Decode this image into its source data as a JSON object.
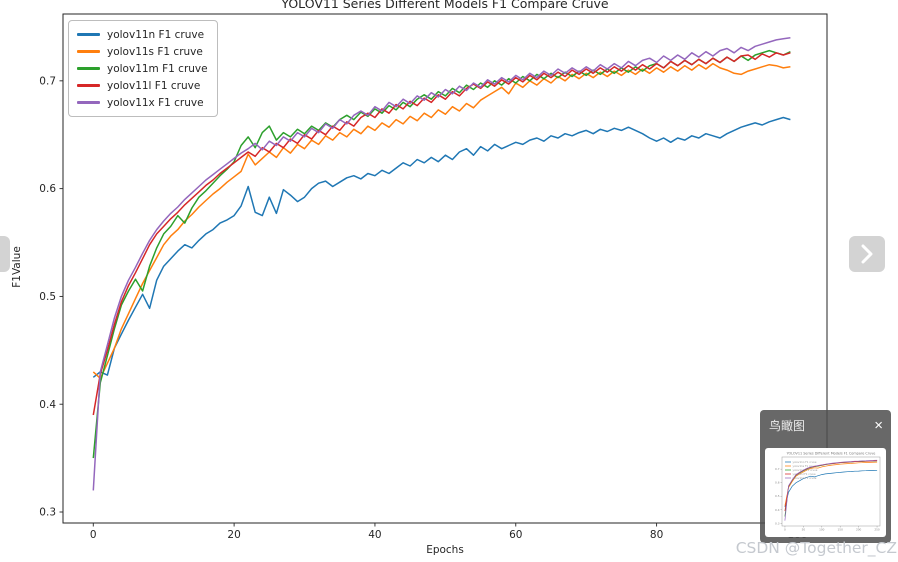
{
  "page": {
    "background": "#ffffff"
  },
  "watermark": {
    "text": "CSDN @Together_CZ",
    "color": "#c5c9cf"
  },
  "nav": {
    "left_arrow": "chevron-left",
    "right_arrow": "chevron-right"
  },
  "overlay": {
    "title": "鸟瞰图",
    "close_label": "×"
  },
  "chart_data": {
    "type": "line",
    "title": "YOLOV11 Series Different Models F1 Compare Cruve",
    "xlabel": "Epochs",
    "ylabel": "F1Value",
    "xlim": [
      -4.3,
      104.2
    ],
    "ylim": [
      0.2898,
      0.762
    ],
    "x_ticks": [
      0,
      20,
      40,
      60,
      80,
      100
    ],
    "y_ticks": [
      0.3,
      0.4,
      0.5,
      0.6,
      0.7
    ],
    "grid": false,
    "legend_position": "upper-left",
    "x_start": 0,
    "x_step": 1,
    "series": [
      {
        "name": "yolov11n F1 cruve",
        "color": "#1f77b4",
        "values": [
          0.425,
          0.43,
          0.427,
          0.452,
          0.465,
          0.478,
          0.49,
          0.502,
          0.489,
          0.515,
          0.528,
          0.535,
          0.542,
          0.548,
          0.545,
          0.552,
          0.558,
          0.562,
          0.568,
          0.571,
          0.575,
          0.584,
          0.602,
          0.578,
          0.575,
          0.592,
          0.577,
          0.599,
          0.594,
          0.588,
          0.592,
          0.6,
          0.605,
          0.607,
          0.602,
          0.606,
          0.61,
          0.612,
          0.609,
          0.614,
          0.612,
          0.617,
          0.614,
          0.619,
          0.624,
          0.621,
          0.627,
          0.624,
          0.629,
          0.625,
          0.631,
          0.627,
          0.634,
          0.637,
          0.631,
          0.639,
          0.635,
          0.641,
          0.637,
          0.64,
          0.643,
          0.641,
          0.645,
          0.647,
          0.644,
          0.649,
          0.647,
          0.651,
          0.649,
          0.652,
          0.654,
          0.651,
          0.655,
          0.653,
          0.656,
          0.654,
          0.657,
          0.654,
          0.651,
          0.647,
          0.644,
          0.647,
          0.643,
          0.647,
          0.645,
          0.649,
          0.647,
          0.651,
          0.649,
          0.647,
          0.651,
          0.654,
          0.657,
          0.659,
          0.661,
          0.659,
          0.662,
          0.664,
          0.666,
          0.664
        ]
      },
      {
        "name": "yolov11s F1 cruve",
        "color": "#ff7f0e",
        "values": [
          0.43,
          0.424,
          0.438,
          0.452,
          0.47,
          0.484,
          0.498,
          0.512,
          0.524,
          0.536,
          0.548,
          0.556,
          0.562,
          0.57,
          0.576,
          0.583,
          0.589,
          0.595,
          0.6,
          0.606,
          0.611,
          0.616,
          0.632,
          0.622,
          0.628,
          0.634,
          0.629,
          0.638,
          0.633,
          0.641,
          0.637,
          0.645,
          0.641,
          0.649,
          0.645,
          0.652,
          0.648,
          0.655,
          0.651,
          0.658,
          0.654,
          0.661,
          0.657,
          0.664,
          0.66,
          0.667,
          0.663,
          0.67,
          0.666,
          0.673,
          0.669,
          0.676,
          0.672,
          0.679,
          0.675,
          0.682,
          0.686,
          0.69,
          0.694,
          0.688,
          0.698,
          0.694,
          0.7,
          0.696,
          0.702,
          0.698,
          0.704,
          0.7,
          0.706,
          0.702,
          0.707,
          0.703,
          0.708,
          0.704,
          0.709,
          0.705,
          0.71,
          0.706,
          0.711,
          0.707,
          0.712,
          0.708,
          0.713,
          0.709,
          0.714,
          0.71,
          0.715,
          0.711,
          0.716,
          0.712,
          0.71,
          0.707,
          0.706,
          0.709,
          0.711,
          0.713,
          0.715,
          0.714,
          0.712,
          0.713
        ]
      },
      {
        "name": "yolov11m F1 cruve",
        "color": "#2ca02c",
        "values": [
          0.35,
          0.42,
          0.445,
          0.47,
          0.492,
          0.505,
          0.516,
          0.505,
          0.528,
          0.545,
          0.558,
          0.565,
          0.575,
          0.568,
          0.582,
          0.592,
          0.598,
          0.605,
          0.612,
          0.618,
          0.625,
          0.64,
          0.648,
          0.638,
          0.652,
          0.658,
          0.645,
          0.652,
          0.648,
          0.655,
          0.651,
          0.658,
          0.654,
          0.661,
          0.657,
          0.664,
          0.668,
          0.664,
          0.671,
          0.667,
          0.674,
          0.67,
          0.677,
          0.673,
          0.68,
          0.676,
          0.683,
          0.687,
          0.683,
          0.69,
          0.686,
          0.693,
          0.689,
          0.696,
          0.692,
          0.698,
          0.694,
          0.7,
          0.696,
          0.702,
          0.698,
          0.704,
          0.7,
          0.706,
          0.702,
          0.707,
          0.703,
          0.708,
          0.704,
          0.709,
          0.705,
          0.71,
          0.706,
          0.711,
          0.707,
          0.712,
          0.708,
          0.713,
          0.709,
          0.714,
          0.716,
          0.712,
          0.718,
          0.714,
          0.719,
          0.715,
          0.72,
          0.716,
          0.721,
          0.717,
          0.722,
          0.718,
          0.723,
          0.719,
          0.724,
          0.726,
          0.728,
          0.726,
          0.724,
          0.727
        ]
      },
      {
        "name": "yolov11l F1 cruve",
        "color": "#d62728",
        "values": [
          0.39,
          0.428,
          0.45,
          0.474,
          0.495,
          0.51,
          0.522,
          0.535,
          0.548,
          0.558,
          0.565,
          0.572,
          0.578,
          0.585,
          0.591,
          0.597,
          0.603,
          0.608,
          0.614,
          0.619,
          0.624,
          0.629,
          0.634,
          0.63,
          0.638,
          0.634,
          0.642,
          0.638,
          0.646,
          0.642,
          0.65,
          0.646,
          0.654,
          0.65,
          0.658,
          0.654,
          0.662,
          0.658,
          0.666,
          0.67,
          0.666,
          0.674,
          0.67,
          0.678,
          0.674,
          0.681,
          0.677,
          0.684,
          0.68,
          0.687,
          0.683,
          0.69,
          0.686,
          0.693,
          0.697,
          0.693,
          0.699,
          0.695,
          0.701,
          0.697,
          0.703,
          0.699,
          0.705,
          0.701,
          0.707,
          0.703,
          0.708,
          0.704,
          0.71,
          0.706,
          0.711,
          0.707,
          0.712,
          0.708,
          0.713,
          0.709,
          0.714,
          0.71,
          0.715,
          0.711,
          0.716,
          0.712,
          0.718,
          0.714,
          0.719,
          0.715,
          0.72,
          0.716,
          0.721,
          0.717,
          0.722,
          0.718,
          0.723,
          0.724,
          0.72,
          0.725,
          0.722,
          0.726,
          0.724,
          0.726
        ]
      },
      {
        "name": "yolov11x F1 cruve",
        "color": "#9467bd",
        "values": [
          0.32,
          0.43,
          0.455,
          0.48,
          0.5,
          0.515,
          0.527,
          0.54,
          0.552,
          0.562,
          0.57,
          0.577,
          0.583,
          0.59,
          0.596,
          0.602,
          0.608,
          0.613,
          0.618,
          0.623,
          0.628,
          0.633,
          0.637,
          0.642,
          0.636,
          0.644,
          0.64,
          0.648,
          0.644,
          0.652,
          0.648,
          0.656,
          0.652,
          0.66,
          0.656,
          0.664,
          0.66,
          0.668,
          0.672,
          0.668,
          0.676,
          0.672,
          0.68,
          0.676,
          0.683,
          0.679,
          0.686,
          0.682,
          0.689,
          0.685,
          0.692,
          0.688,
          0.695,
          0.691,
          0.698,
          0.694,
          0.701,
          0.697,
          0.703,
          0.699,
          0.705,
          0.701,
          0.707,
          0.703,
          0.709,
          0.705,
          0.711,
          0.707,
          0.712,
          0.708,
          0.713,
          0.709,
          0.715,
          0.711,
          0.716,
          0.712,
          0.718,
          0.714,
          0.719,
          0.721,
          0.717,
          0.723,
          0.719,
          0.724,
          0.72,
          0.726,
          0.722,
          0.727,
          0.723,
          0.728,
          0.73,
          0.726,
          0.731,
          0.728,
          0.732,
          0.734,
          0.736,
          0.738,
          0.739,
          0.74
        ]
      }
    ],
    "minimap": {
      "x_start": 0,
      "x_step": 10,
      "xlim": [
        -8,
        258
      ],
      "ylim": [
        0.28,
        0.79
      ],
      "series": [
        {
          "name": "yolov11n F1 cruve",
          "color": "#1f77b4",
          "values": [
            0.42,
            0.53,
            0.575,
            0.6,
            0.615,
            0.63,
            0.64,
            0.648,
            0.643,
            0.652,
            0.66,
            0.665,
            0.668,
            0.671,
            0.674,
            0.676,
            0.679,
            0.681,
            0.683,
            0.685,
            0.686,
            0.688,
            0.689,
            0.69,
            0.691,
            0.692
          ]
        },
        {
          "name": "yolov11s F1 cruve",
          "color": "#ff7f0e",
          "values": [
            0.43,
            0.565,
            0.61,
            0.648,
            0.664,
            0.68,
            0.695,
            0.705,
            0.71,
            0.708,
            0.717,
            0.722,
            0.727,
            0.731,
            0.734,
            0.737,
            0.739,
            0.741,
            0.743,
            0.745,
            0.747,
            0.748,
            0.749,
            0.75,
            0.751,
            0.752
          ]
        },
        {
          "name": "yolov11m F1 cruve",
          "color": "#2ca02c",
          "values": [
            0.35,
            0.572,
            0.618,
            0.655,
            0.672,
            0.688,
            0.702,
            0.712,
            0.718,
            0.723,
            0.728,
            0.733,
            0.738,
            0.741,
            0.744,
            0.747,
            0.749,
            0.751,
            0.753,
            0.755,
            0.756,
            0.757,
            0.758,
            0.759,
            0.76,
            0.761
          ]
        },
        {
          "name": "yolov11l F1 cruve",
          "color": "#d62728",
          "values": [
            0.39,
            0.575,
            0.62,
            0.658,
            0.675,
            0.69,
            0.704,
            0.714,
            0.72,
            0.725,
            0.73,
            0.735,
            0.739,
            0.742,
            0.745,
            0.748,
            0.75,
            0.752,
            0.754,
            0.756,
            0.757,
            0.758,
            0.759,
            0.76,
            0.761,
            0.762
          ]
        },
        {
          "name": "yolov11x F1 cruve",
          "color": "#9467bd",
          "values": [
            0.32,
            0.578,
            0.622,
            0.66,
            0.678,
            0.693,
            0.707,
            0.716,
            0.722,
            0.727,
            0.732,
            0.737,
            0.741,
            0.745,
            0.748,
            0.751,
            0.753,
            0.755,
            0.757,
            0.759,
            0.76,
            0.762,
            0.763,
            0.764,
            0.765,
            0.766
          ]
        }
      ]
    }
  }
}
